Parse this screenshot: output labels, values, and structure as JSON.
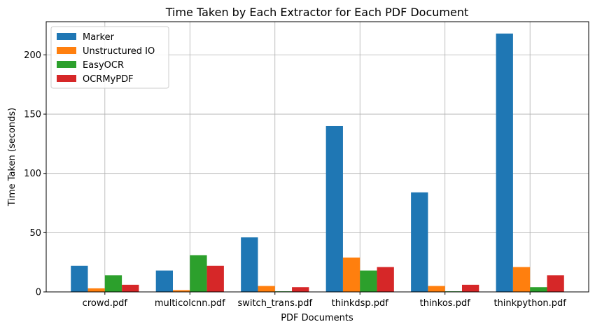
{
  "chart_data": {
    "type": "bar",
    "title": "Time Taken by Each Extractor for Each PDF Document",
    "xlabel": "PDF Documents",
    "ylabel": "Time Taken (seconds)",
    "categories": [
      "crowd.pdf",
      "multicolcnn.pdf",
      "switch_trans.pdf",
      "thinkdsp.pdf",
      "thinkos.pdf",
      "thinkpython.pdf"
    ],
    "ylim": [
      0,
      228
    ],
    "yticks": [
      0,
      50,
      100,
      150,
      200
    ],
    "grid": true,
    "legend_position": "top-left",
    "series": [
      {
        "name": "Marker",
        "color": "#1f77b4",
        "values": [
          22,
          18,
          46,
          140,
          84,
          218
        ]
      },
      {
        "name": "Unstructured IO",
        "color": "#ff7f0e",
        "values": [
          3,
          1.5,
          5,
          29,
          5,
          21
        ]
      },
      {
        "name": "EasyOCR",
        "color": "#2ca02c",
        "values": [
          14,
          31,
          0.5,
          18,
          0.5,
          4
        ]
      },
      {
        "name": "OCRMyPDF",
        "color": "#d62728",
        "values": [
          6,
          22,
          4,
          21,
          6,
          14
        ]
      }
    ]
  }
}
